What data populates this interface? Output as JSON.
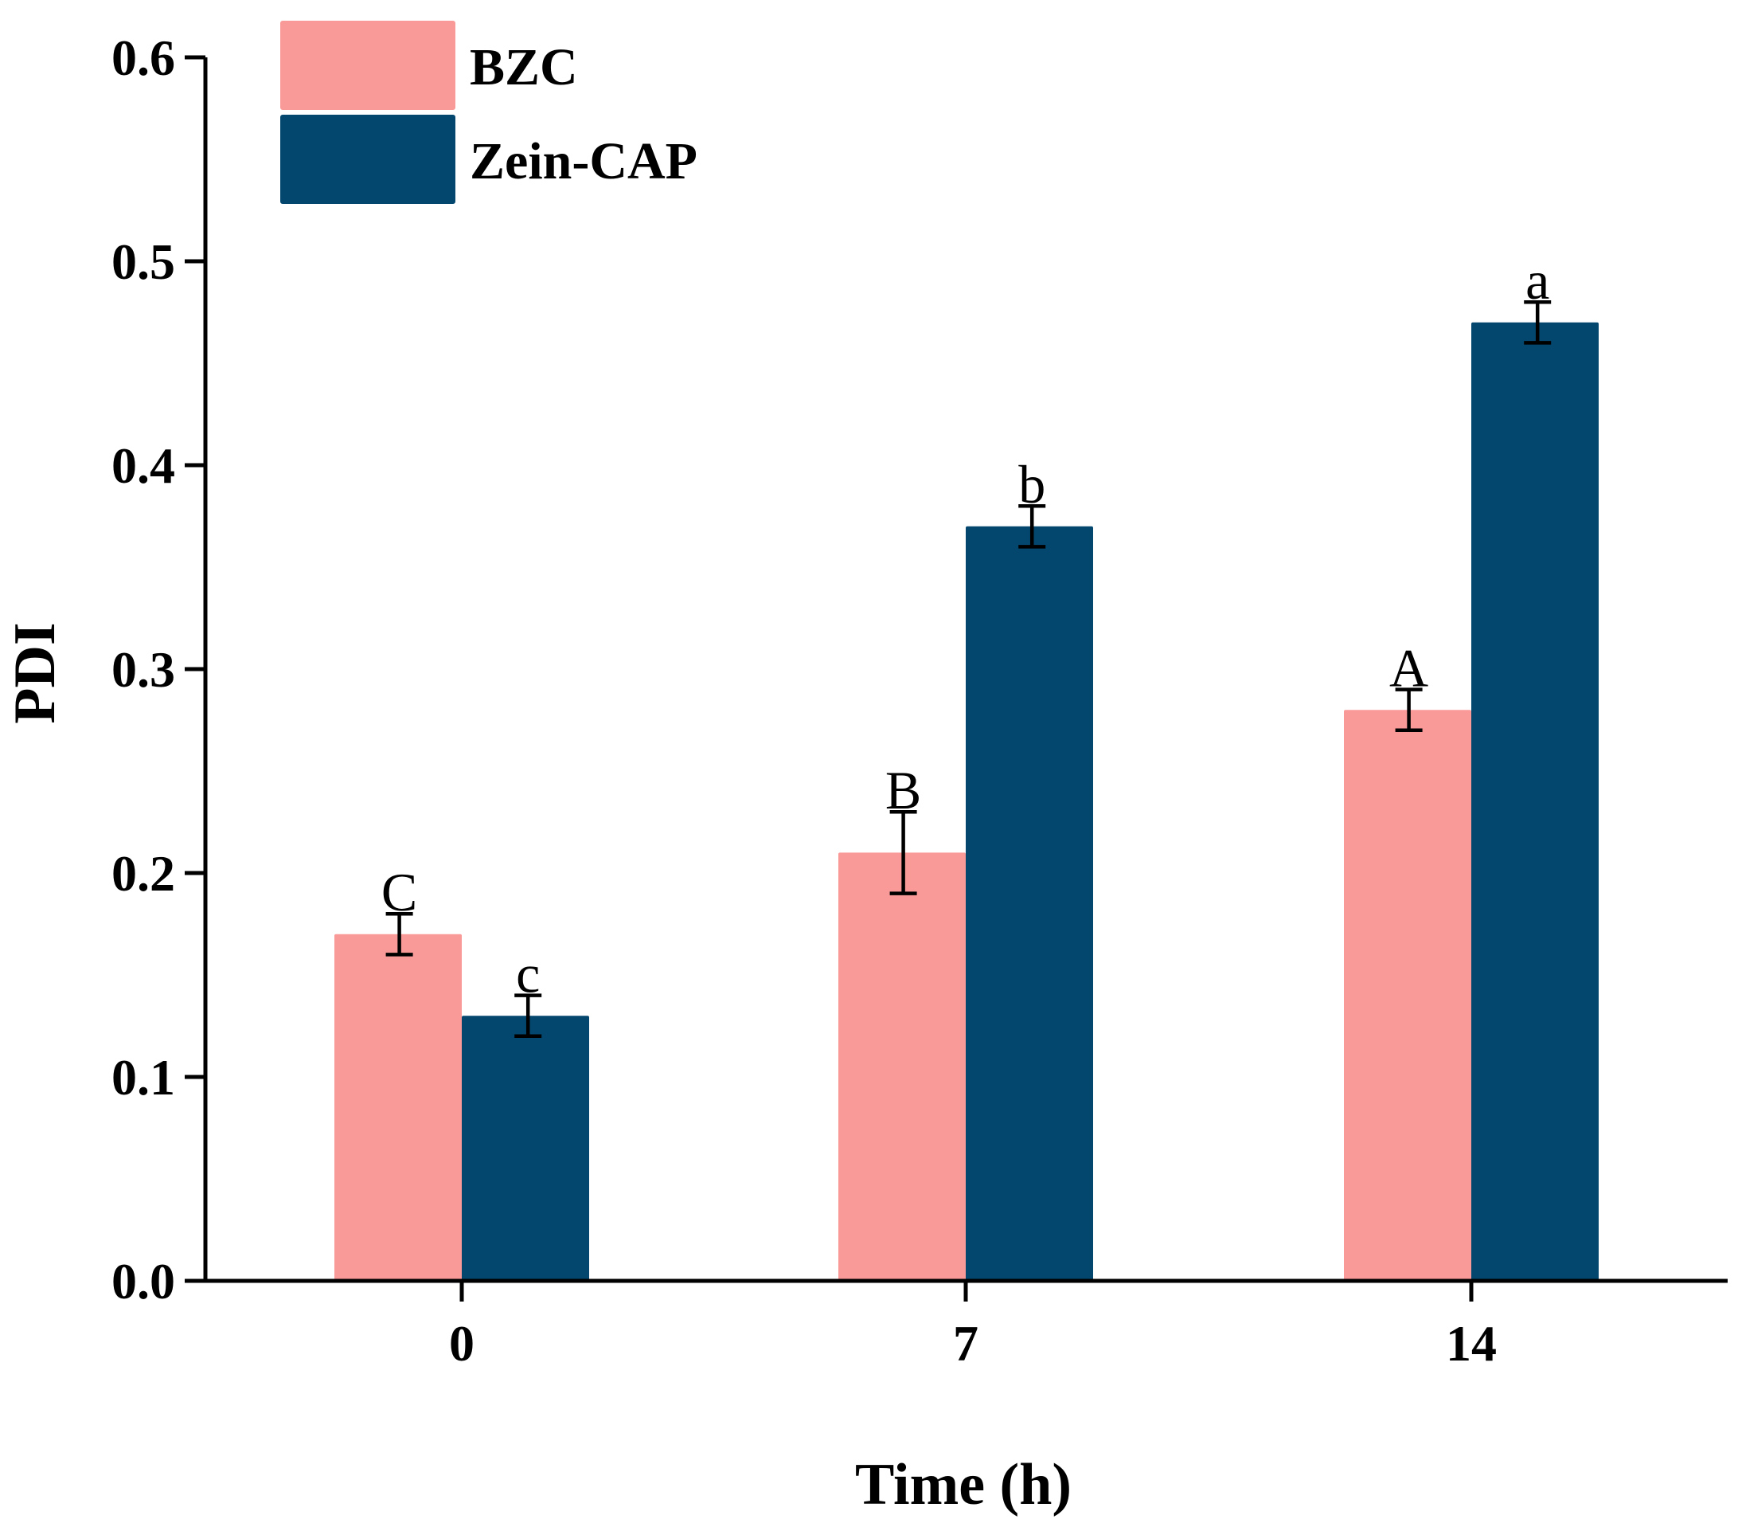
{
  "chart_data": {
    "type": "bar",
    "title": "",
    "xlabel": "Time (h)",
    "ylabel": "PDI",
    "ylim": [
      0.0,
      0.6
    ],
    "yticks": [
      "0.0",
      "0.1",
      "0.2",
      "0.3",
      "0.4",
      "0.5",
      "0.6"
    ],
    "categories": [
      "0",
      "7",
      "14"
    ],
    "legend_position": "top-left",
    "grid": false,
    "series": [
      {
        "name": "BZC",
        "color": "#f99a98",
        "values": [
          0.17,
          0.21,
          0.28
        ],
        "errors_upper": [
          0.18,
          0.23,
          0.29
        ],
        "errors_lower": [
          0.16,
          0.19,
          0.27
        ],
        "labels": [
          "C",
          "B",
          "A"
        ]
      },
      {
        "name": "Zein-CAP",
        "color": "#03476f",
        "values": [
          0.13,
          0.37,
          0.47
        ],
        "errors_upper": [
          0.14,
          0.38,
          0.48
        ],
        "errors_lower": [
          0.12,
          0.36,
          0.46
        ],
        "labels": [
          "c",
          "b",
          "a"
        ]
      }
    ]
  }
}
